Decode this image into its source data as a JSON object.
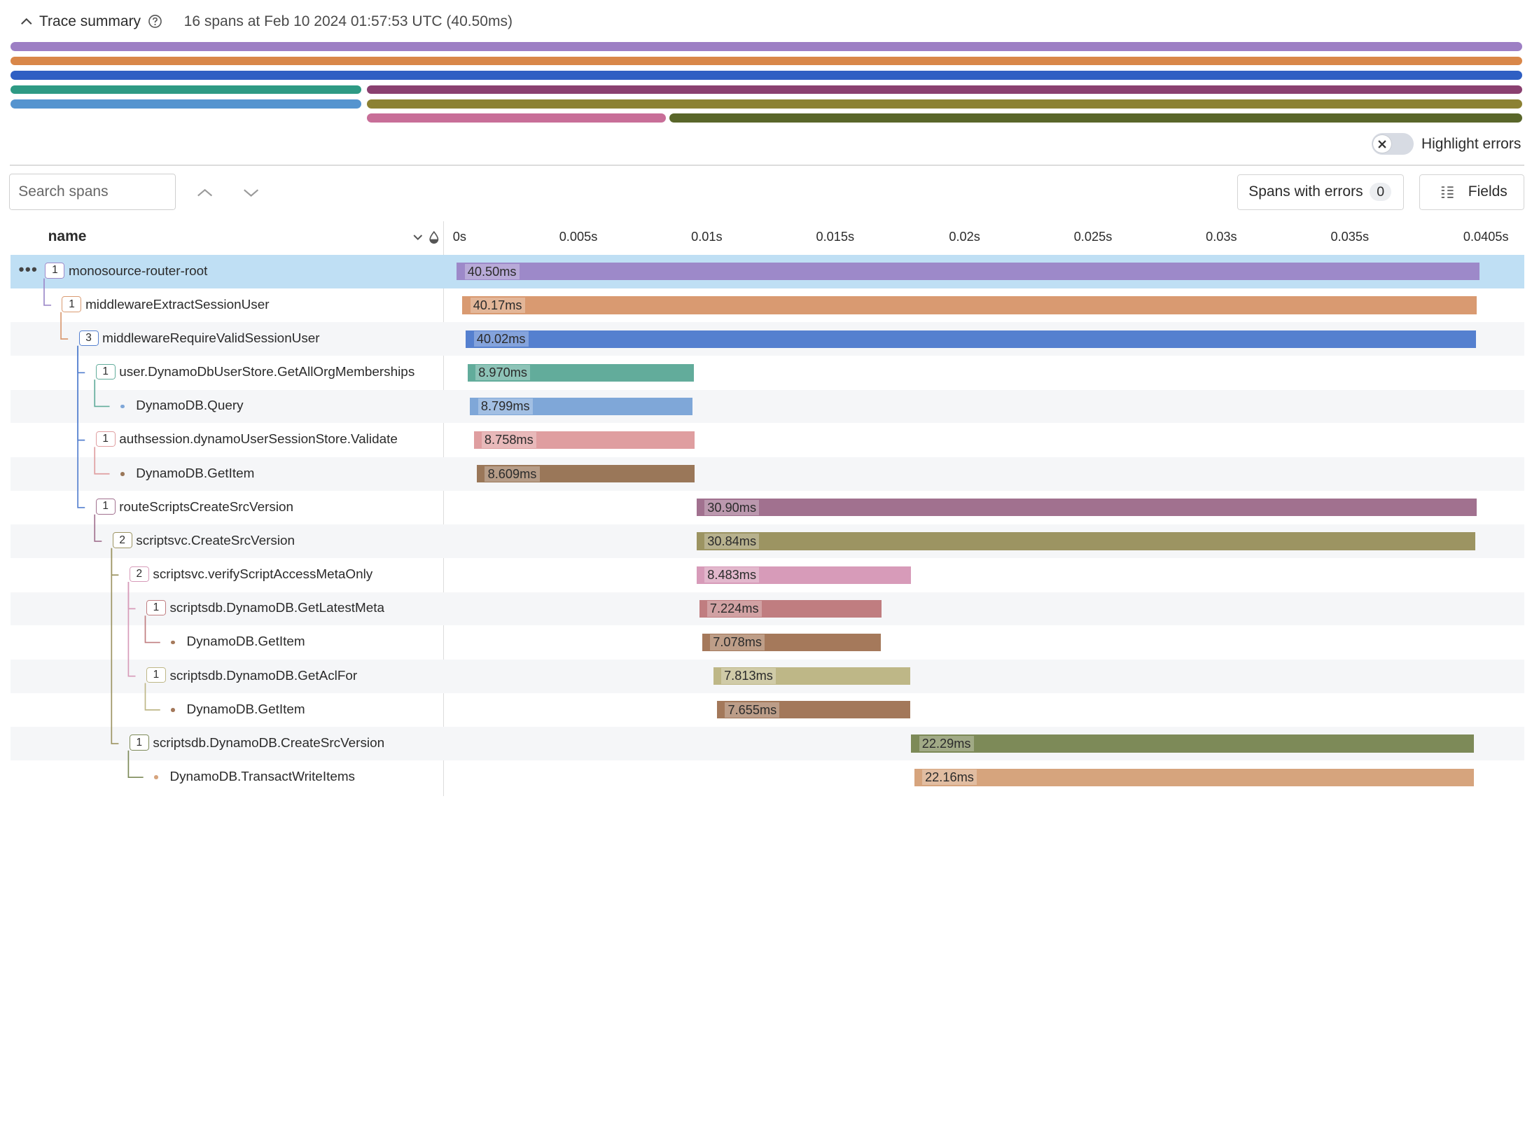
{
  "summary": {
    "title": "Trace summary",
    "meta": "16 spans at Feb 10 2024 01:57:53 UTC (40.50ms)"
  },
  "highlight_errors": {
    "label": "Highlight errors",
    "enabled": false
  },
  "search": {
    "placeholder": "Search spans",
    "value": ""
  },
  "spans_with_errors": {
    "label": "Spans with errors",
    "count": "0"
  },
  "fields_button": {
    "label": "Fields"
  },
  "columns": {
    "name": "name"
  },
  "axis": {
    "max_s": 0.0405,
    "ticks": [
      "0s",
      "0.005s",
      "0.01s",
      "0.015s",
      "0.02s",
      "0.025s",
      "0.03s",
      "0.035s",
      "0.0405s"
    ]
  },
  "spans": [
    {
      "name": "monosource-router-root",
      "children": "1",
      "depth": 0,
      "start_ms": 0.0,
      "duration_ms": 40.5,
      "dur_label": "40.50ms",
      "color": "#9d89c9"
    },
    {
      "name": "middlewareExtractSessionUser",
      "children": "1",
      "depth": 1,
      "start_ms": 0.22,
      "duration_ms": 40.17,
      "dur_label": "40.17ms",
      "color": "#d99a71"
    },
    {
      "name": "middlewareRequireValidSessionUser",
      "children": "3",
      "depth": 2,
      "start_ms": 0.36,
      "duration_ms": 40.02,
      "dur_label": "40.02ms",
      "color": "#5580cf"
    },
    {
      "name": "user.DynamoDbUserStore.GetAllOrgMemberships",
      "children": "1",
      "depth": 3,
      "start_ms": 0.43,
      "duration_ms": 8.97,
      "dur_label": "8.970ms",
      "color": "#62ac9b"
    },
    {
      "name": "DynamoDB.Query",
      "children": "",
      "depth": 4,
      "start_ms": 0.53,
      "duration_ms": 8.799,
      "dur_label": "8.799ms",
      "color": "#7fa7d8"
    },
    {
      "name": "authsession.dynamoUserSessionStore.Validate",
      "children": "1",
      "depth": 3,
      "start_ms": 0.67,
      "duration_ms": 8.758,
      "dur_label": "8.758ms",
      "color": "#df9ea0"
    },
    {
      "name": "DynamoDB.GetItem",
      "children": "",
      "depth": 4,
      "start_ms": 0.8,
      "duration_ms": 8.609,
      "dur_label": "8.609ms",
      "color": "#9a7759"
    },
    {
      "name": "routeScriptsCreateSrcVersion",
      "children": "1",
      "depth": 3,
      "start_ms": 9.5,
      "duration_ms": 30.9,
      "dur_label": "30.90ms",
      "color": "#a1718f"
    },
    {
      "name": "scriptsvc.CreateSrcVersion",
      "children": "2",
      "depth": 4,
      "start_ms": 9.5,
      "duration_ms": 30.84,
      "dur_label": "30.84ms",
      "color": "#9c9462"
    },
    {
      "name": "scriptsvc.verifyScriptAccessMetaOnly",
      "children": "2",
      "depth": 5,
      "start_ms": 9.5,
      "duration_ms": 8.483,
      "dur_label": "8.483ms",
      "color": "#d79bb9"
    },
    {
      "name": "scriptsdb.DynamoDB.GetLatestMeta",
      "children": "1",
      "depth": 6,
      "start_ms": 9.6,
      "duration_ms": 7.224,
      "dur_label": "7.224ms",
      "color": "#c07d80"
    },
    {
      "name": "DynamoDB.GetItem",
      "children": "",
      "depth": 7,
      "start_ms": 9.72,
      "duration_ms": 7.078,
      "dur_label": "7.078ms",
      "color": "#a5795b"
    },
    {
      "name": "scriptsdb.DynamoDB.GetAclFor",
      "children": "1",
      "depth": 6,
      "start_ms": 10.16,
      "duration_ms": 7.813,
      "dur_label": "7.813ms",
      "color": "#beb787"
    },
    {
      "name": "DynamoDB.GetItem",
      "children": "",
      "depth": 7,
      "start_ms": 10.31,
      "duration_ms": 7.655,
      "dur_label": "7.655ms",
      "color": "#a3785a"
    },
    {
      "name": "scriptsdb.DynamoDB.CreateSrcVersion",
      "children": "1",
      "depth": 5,
      "start_ms": 18.0,
      "duration_ms": 22.29,
      "dur_label": "22.29ms",
      "color": "#7d8a58"
    },
    {
      "name": "DynamoDB.TransactWriteItems",
      "children": "",
      "depth": 6,
      "start_ms": 18.12,
      "duration_ms": 22.16,
      "dur_label": "22.16ms",
      "color": "#d6a47d"
    }
  ],
  "minimap": [
    {
      "lane": 0,
      "start_ms": 0.0,
      "end_ms": 40.5,
      "color": "#9d7fc4"
    },
    {
      "lane": 1,
      "start_ms": 0.0,
      "end_ms": 40.5,
      "color": "#d98749"
    },
    {
      "lane": 2,
      "start_ms": 0.0,
      "end_ms": 40.5,
      "color": "#2f5fc3"
    },
    {
      "lane": 3,
      "start_ms": 0.0,
      "end_ms": 9.4,
      "color": "#2e9a84"
    },
    {
      "lane": 3,
      "start_ms": 9.55,
      "end_ms": 40.5,
      "color": "#8a4070"
    },
    {
      "lane": 4,
      "start_ms": 0.0,
      "end_ms": 9.4,
      "color": "#5594cf"
    },
    {
      "lane": 4,
      "start_ms": 9.55,
      "end_ms": 40.5,
      "color": "#8c8133"
    },
    {
      "lane": 5,
      "start_ms": 9.55,
      "end_ms": 17.55,
      "color": "#c86e98"
    },
    {
      "lane": 5,
      "start_ms": 17.65,
      "end_ms": 40.5,
      "color": "#59662a"
    }
  ]
}
